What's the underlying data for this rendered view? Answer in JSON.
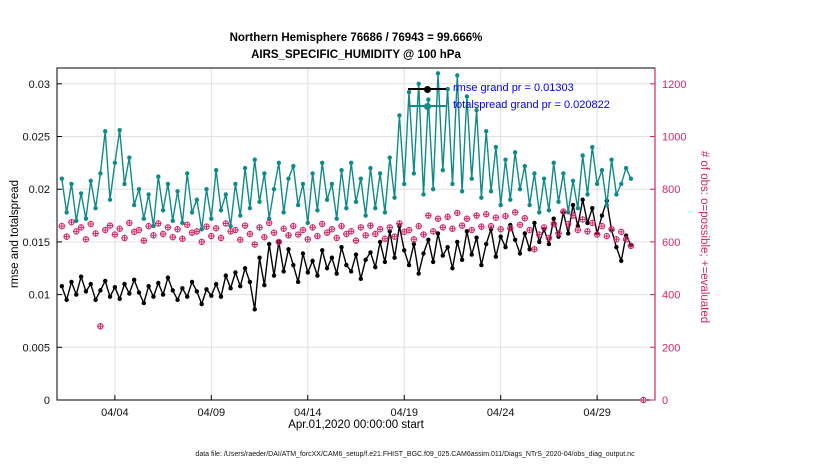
{
  "title": {
    "line1": "Northern Hemisphere 76686 / 76943 = 99.666%",
    "line2": "AIRS_SPECIFIC_HUMIDITY @ 100 hPa"
  },
  "caption": "data file: /Users/raeder/DAI/ATM_forcXX/CAM6_setup/f.e21.FHIST_BGC.f09_025.CAM6assim.011/Diags_NTrS_2020-04/obs_diag_output.nc",
  "colors": {
    "axis_left": "#000000",
    "obs": "#d0266a",
    "teal": "#0e8b88",
    "legend_text": "#0000ee",
    "grid": "#e0e0e0"
  },
  "chart_data": {
    "type": "line",
    "title": "Northern Hemisphere 76686 / 76943 = 99.666% | AIRS_SPECIFIC_HUMIDITY @ 100 hPa",
    "xlabel": "Apr.01,2020 00:00:00 start",
    "ylabel_left": "rmse and totalspread",
    "ylabel_right": "# of obs: o=possible; +=evaluated",
    "grid": true,
    "legend_position": "top-center-inside",
    "xlim_days": [
      0,
      31
    ],
    "ylim_left": [
      0,
      0.0315
    ],
    "ylim_right": [
      0,
      1260
    ],
    "xticks": {
      "positions_days": [
        3,
        8,
        13,
        18,
        23,
        28
      ],
      "labels": [
        "04/04",
        "04/09",
        "04/14",
        "04/19",
        "04/24",
        "04/29"
      ]
    },
    "yticks_left": {
      "values": [
        0,
        0.005,
        0.01,
        0.015,
        0.02,
        0.025,
        0.03
      ],
      "labels": [
        "0",
        "0.005",
        "0.01",
        "0.015",
        "0.02",
        "0.025",
        "0.03"
      ]
    },
    "yticks_right": {
      "values": [
        0,
        200,
        400,
        600,
        800,
        1000,
        1200
      ],
      "labels": [
        "0",
        "200",
        "400",
        "600",
        "800",
        "1000",
        "1200"
      ]
    },
    "legend": [
      {
        "label": "rmse grand pr = 0.01303",
        "color": "#000000"
      },
      {
        "label": "totalspread grand pr = 0.020822",
        "color": "#0e8b88"
      }
    ],
    "x_sampling": {
      "start_day": 0.25,
      "step_day": 0.25,
      "count": 119,
      "note": "6-hourly from Apr 1 2020"
    },
    "series": [
      {
        "name": "rmse",
        "color": "#000000",
        "axis": "left",
        "marker": "filled-circle",
        "values": [
          0.0108,
          0.0095,
          0.0112,
          0.01,
          0.0117,
          0.0103,
          0.011,
          0.0095,
          0.0104,
          0.0113,
          0.0098,
          0.0107,
          0.0096,
          0.011,
          0.0101,
          0.0114,
          0.0102,
          0.0092,
          0.0108,
          0.0098,
          0.0111,
          0.01,
          0.0116,
          0.0104,
          0.0095,
          0.0106,
          0.0098,
          0.0112,
          0.0103,
          0.0091,
          0.0105,
          0.0099,
          0.011,
          0.0098,
          0.0118,
          0.0106,
          0.0121,
          0.0108,
          0.0125,
          0.0112,
          0.0086,
          0.0135,
          0.0109,
          0.0148,
          0.0118,
          0.015,
          0.0122,
          0.0143,
          0.0128,
          0.0112,
          0.0139,
          0.0121,
          0.0132,
          0.0118,
          0.0142,
          0.0125,
          0.0135,
          0.012,
          0.0145,
          0.0128,
          0.0122,
          0.0138,
          0.0115,
          0.0133,
          0.014,
          0.0126,
          0.015,
          0.0131,
          0.016,
          0.0135,
          0.0165,
          0.0142,
          0.0128,
          0.0148,
          0.012,
          0.0139,
          0.0152,
          0.0131,
          0.0158,
          0.0137,
          0.0145,
          0.0125,
          0.015,
          0.0133,
          0.016,
          0.0138,
          0.0154,
          0.0128,
          0.0148,
          0.0162,
          0.0136,
          0.0155,
          0.0145,
          0.0166,
          0.0152,
          0.0139,
          0.0158,
          0.0143,
          0.0168,
          0.015,
          0.0162,
          0.0148,
          0.0172,
          0.0155,
          0.0178,
          0.0158,
          0.0185,
          0.0165,
          0.019,
          0.0168,
          0.0182,
          0.0158,
          0.0175,
          0.0189,
          0.0161,
          0.0145,
          0.0132,
          0.0156,
          0.0147
        ]
      },
      {
        "name": "totalspread",
        "color": "#0e8b88",
        "axis": "left",
        "marker": "filled-circle",
        "values": [
          0.021,
          0.0178,
          0.0205,
          0.017,
          0.0196,
          0.0172,
          0.0208,
          0.0182,
          0.0215,
          0.0255,
          0.019,
          0.0225,
          0.0256,
          0.0205,
          0.023,
          0.0185,
          0.02,
          0.0172,
          0.0195,
          0.0165,
          0.0212,
          0.018,
          0.0205,
          0.017,
          0.0198,
          0.0168,
          0.0215,
          0.0178,
          0.019,
          0.0162,
          0.02,
          0.0172,
          0.0218,
          0.018,
          0.0195,
          0.0165,
          0.0205,
          0.0175,
          0.022,
          0.0182,
          0.0228,
          0.0188,
          0.0215,
          0.0172,
          0.02,
          0.0225,
          0.0178,
          0.021,
          0.0222,
          0.0185,
          0.0205,
          0.0168,
          0.0215,
          0.018,
          0.0225,
          0.019,
          0.0205,
          0.0172,
          0.0218,
          0.0182,
          0.0225,
          0.0188,
          0.021,
          0.0175,
          0.022,
          0.0182,
          0.0215,
          0.0178,
          0.023,
          0.0192,
          0.027,
          0.0205,
          0.0292,
          0.0215,
          0.03,
          0.0195,
          0.0285,
          0.02,
          0.031,
          0.0218,
          0.0295,
          0.0205,
          0.0308,
          0.0198,
          0.0288,
          0.021,
          0.0275,
          0.0192,
          0.0255,
          0.0198,
          0.024,
          0.0185,
          0.0228,
          0.019,
          0.0235,
          0.02,
          0.0222,
          0.0185,
          0.0215,
          0.0178,
          0.021,
          0.018,
          0.0225,
          0.0188,
          0.0215,
          0.0178,
          0.0208,
          0.0182,
          0.0232,
          0.0195,
          0.024,
          0.0205,
          0.0218,
          0.0185,
          0.0228,
          0.0195,
          0.0205,
          0.022,
          0.021
        ]
      },
      {
        "name": "obs_count",
        "color": "#d0266a",
        "axis": "right",
        "marker": "circle-plus",
        "values": [
          660,
          620,
          675,
          640,
          655,
          610,
          668,
          632,
          280,
          645,
          662,
          628,
          650,
          615,
          672,
          638,
          645,
          605,
          660,
          625,
          670,
          630,
          655,
          618,
          648,
          612,
          665,
          635,
          640,
          600,
          658,
          622,
          652,
          615,
          670,
          640,
          645,
          608,
          662,
          630,
          590,
          655,
          618,
          672,
          635,
          600,
          650,
          625,
          660,
          628,
          645,
          610,
          655,
          622,
          668,
          635,
          648,
          615,
          660,
          630,
          640,
          605,
          655,
          625,
          662,
          630,
          648,
          612,
          655,
          620,
          670,
          638,
          645,
          610,
          660,
          628,
          700,
          640,
          688,
          655,
          695,
          650,
          710,
          662,
          688,
          645,
          700,
          658,
          705,
          660,
          692,
          648,
          698,
          652,
          712,
          665,
          690,
          645,
          572,
          628,
          655,
          615,
          668,
          632,
          715,
          668,
          700,
          645,
          685,
          640,
          672,
          628,
          660,
          622,
          648,
          610,
          638,
          610,
          585
        ],
        "extra_points": [
          {
            "x_day": 30.4,
            "value": 0
          }
        ]
      }
    ]
  }
}
